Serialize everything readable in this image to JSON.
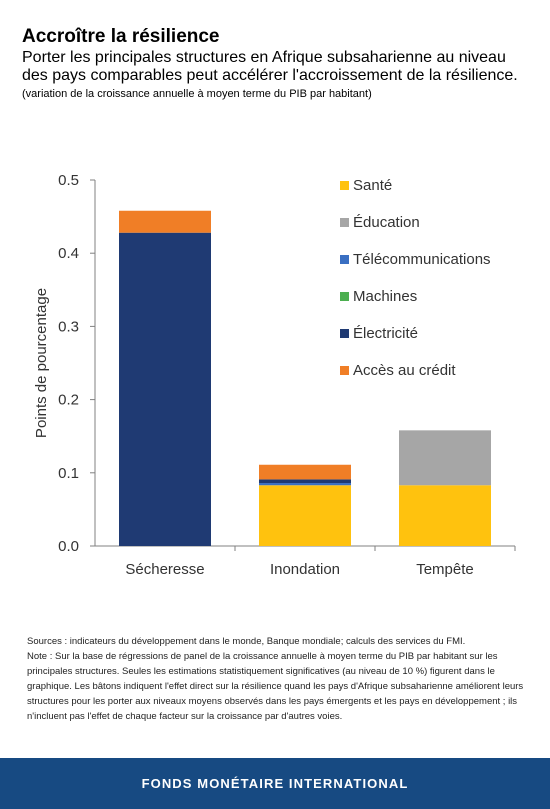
{
  "header": {
    "title": "Accroître la résilience",
    "subtitle": "Porter les principales structures en Afrique subsaharienne au niveau des pays comparables peut accélérer l'accroissement de la résilience.",
    "unit_note": "(variation de la croissance annuelle à moyen terme du PIB par habitant)"
  },
  "chart_data": {
    "type": "bar",
    "stacked": true,
    "categories": [
      "Sécheresse",
      "Inondation",
      "Tempête"
    ],
    "ylabel": "Points de pourcentage",
    "ylim": [
      0,
      0.5
    ],
    "yticks": [
      "0.0",
      "0.1",
      "0.2",
      "0.3",
      "0.4",
      "0.5"
    ],
    "grid": false,
    "legend_position": "top-right",
    "series": [
      {
        "name": "Santé",
        "color": "#FFC20E",
        "values": [
          0,
          0.083,
          0.083
        ]
      },
      {
        "name": "Éducation",
        "color": "#A6A6A6",
        "values": [
          0,
          0,
          0.075
        ]
      },
      {
        "name": "Télécommunications",
        "color": "#3A6FC2",
        "values": [
          0,
          0.003,
          0
        ]
      },
      {
        "name": "Machines",
        "color": "#4CAF50",
        "values": [
          0,
          0,
          0
        ]
      },
      {
        "name": "Électricité",
        "color": "#1F3A73",
        "values": [
          0.428,
          0.005,
          0
        ]
      },
      {
        "name": "Accès au crédit",
        "color": "#F07E26",
        "values": [
          0.03,
          0.02,
          0
        ]
      }
    ]
  },
  "notes": {
    "sources": "Sources : indicateurs du développement dans le monde, Banque mondiale; calculs des services du FMI.",
    "note": "Note : Sur la base de régressions de panel de la croissance annuelle à moyen terme du PIB par habitant sur les principales structures. Seules les estimations statistiquement significatives (au niveau de 10 %) figurent dans le graphique. Les bâtons indiquent l'effet direct sur la résilience quand les pays d'Afrique subsaharienne améliorent leurs structures pour les porter aux niveaux moyens observés dans les pays émergents et les pays en développement ; ils n'incluent pas l'effet de chaque facteur sur la croissance par d'autres voies."
  },
  "footer": {
    "label": "FONDS MONÉTAIRE INTERNATIONAL"
  }
}
